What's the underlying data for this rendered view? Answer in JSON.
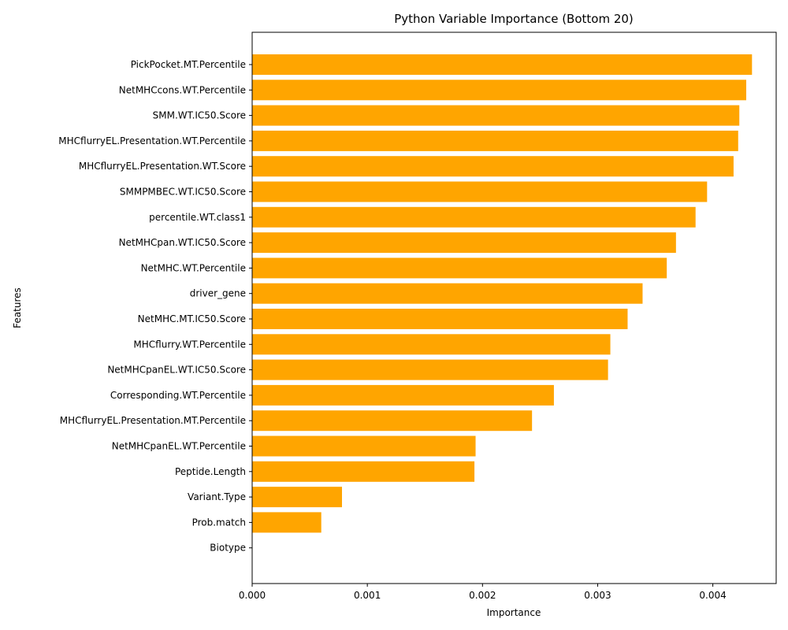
{
  "chart_data": {
    "type": "bar",
    "orientation": "horizontal",
    "title": "Python Variable Importance (Bottom 20)",
    "xlabel": "Importance",
    "ylabel": "Features",
    "xlim": [
      0,
      0.00455
    ],
    "x_ticks": [
      "0.000",
      "0.001",
      "0.002",
      "0.003",
      "0.004"
    ],
    "grid": false,
    "bar_color": "#FFA500",
    "categories": [
      "PickPocket.MT.Percentile",
      "NetMHCcons.WT.Percentile",
      "SMM.WT.IC50.Score",
      "MHCflurryEL.Presentation.WT.Percentile",
      "MHCflurryEL.Presentation.WT.Score",
      "SMMPMBEC.WT.IC50.Score",
      "percentile.WT.class1",
      "NetMHCpan.WT.IC50.Score",
      "NetMHC.WT.Percentile",
      "driver_gene",
      "NetMHC.MT.IC50.Score",
      "MHCflurry.WT.Percentile",
      "NetMHCpanEL.WT.IC50.Score",
      "Corresponding.WT.Percentile",
      "MHCflurryEL.Presentation.MT.Percentile",
      "NetMHCpanEL.WT.Percentile",
      "Peptide.Length",
      "Variant.Type",
      "Prob.match",
      "Biotype"
    ],
    "values": [
      0.00434,
      0.00429,
      0.00423,
      0.00422,
      0.00418,
      0.00395,
      0.00385,
      0.00368,
      0.0036,
      0.00339,
      0.00326,
      0.00311,
      0.00309,
      0.00262,
      0.00243,
      0.00194,
      0.00193,
      0.00078,
      0.0006,
      0.0
    ]
  }
}
